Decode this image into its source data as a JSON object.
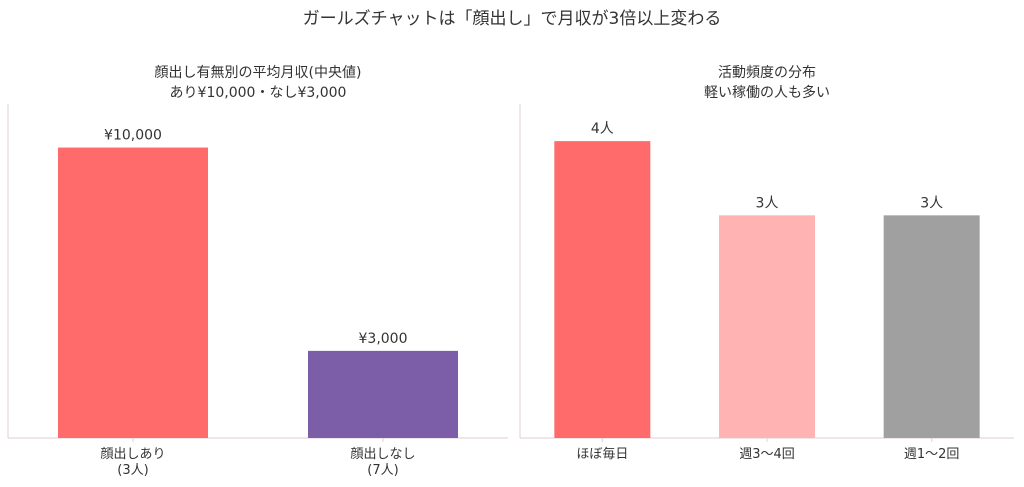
{
  "figure": {
    "suptitle": "ガールズチャットは「顔出し」で月収が3倍以上変わる",
    "colors": {
      "axis": "#e7d6dc",
      "text": "#333333",
      "background": "#ffffff"
    }
  },
  "chart_data": [
    {
      "type": "bar",
      "title_lines": [
        "顔出し有無別の平均月収(中央値)",
        "あり¥10,000・なし¥3,000"
      ],
      "categories": [
        {
          "lines": [
            "顔出しあり",
            "(3人)"
          ]
        },
        {
          "lines": [
            "顔出しなし",
            "(7人)"
          ]
        }
      ],
      "values": [
        10000,
        3000
      ],
      "value_labels": [
        "¥10,000",
        "¥3,000"
      ],
      "colors": [
        "#ff6b6b",
        "#7b5ea7"
      ],
      "ylim": [
        0,
        11500
      ],
      "grid": false,
      "legend": "none"
    },
    {
      "type": "bar",
      "title_lines": [
        "活動頻度の分布",
        "軽い稼働の人も多い"
      ],
      "categories": [
        {
          "lines": [
            "ほぼ毎日"
          ]
        },
        {
          "lines": [
            "週3〜4回"
          ]
        },
        {
          "lines": [
            "週1〜2回"
          ]
        }
      ],
      "values": [
        4,
        3,
        3
      ],
      "value_labels": [
        "4人",
        "3人",
        "3人"
      ],
      "colors": [
        "#ff6b6b",
        "#ffb3b3",
        "#a0a0a0"
      ],
      "ylim": [
        0,
        4.5
      ],
      "grid": false,
      "legend": "none"
    }
  ]
}
